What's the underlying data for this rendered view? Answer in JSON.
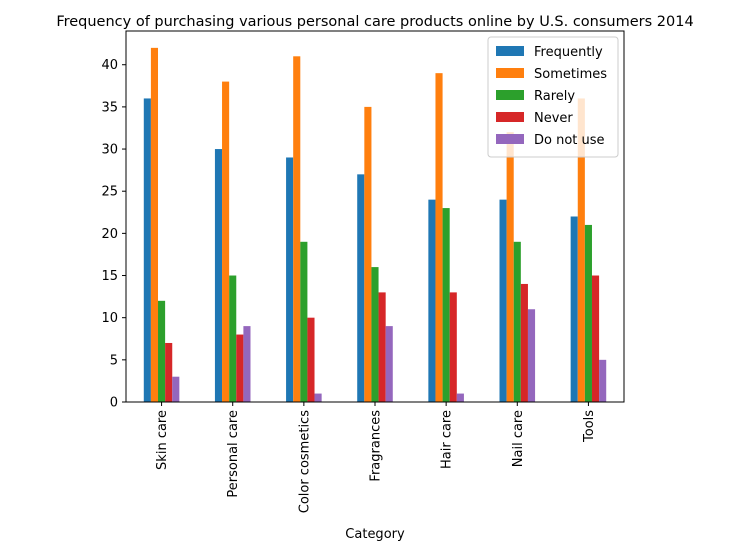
{
  "chart_data": {
    "type": "bar",
    "title": "Frequency of purchasing various personal care products online by U.S. consumers 2014",
    "xlabel": "Category",
    "ylabel": "",
    "categories": [
      "Skin care",
      "Personal care",
      "Color cosmetics",
      "Fragrances",
      "Hair care",
      "Nail care",
      "Tools"
    ],
    "ylim": [
      0,
      44
    ],
    "yticks": [
      0,
      5,
      10,
      15,
      20,
      25,
      30,
      35,
      40
    ],
    "grid": false,
    "legend_position": "top-right",
    "series": [
      {
        "name": "Frequently",
        "color": "#1f77b4",
        "values": [
          36,
          30,
          29,
          27,
          24,
          24,
          22
        ]
      },
      {
        "name": "Sometimes",
        "color": "#ff7f0e",
        "values": [
          42,
          38,
          41,
          35,
          39,
          32,
          36
        ]
      },
      {
        "name": "Rarely",
        "color": "#2ca02c",
        "values": [
          12,
          15,
          19,
          16,
          23,
          19,
          21
        ]
      },
      {
        "name": "Never",
        "color": "#d62728",
        "values": [
          7,
          8,
          10,
          13,
          13,
          14,
          15
        ]
      },
      {
        "name": "Do not use",
        "color": "#9467bd",
        "values": [
          3,
          9,
          1,
          9,
          1,
          11,
          5
        ]
      }
    ]
  }
}
